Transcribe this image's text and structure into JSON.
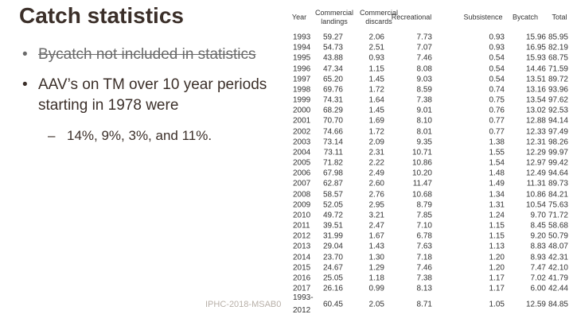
{
  "title": "Catch statistics",
  "bullets": [
    "Bycatch not included in statistics",
    "AAV’s on TM over 10 year periods starting in 1978 were"
  ],
  "sub_bullet": "14%, 9%, 3%, and 11%.",
  "footer": "IPHC-2018-MSAB0",
  "table": {
    "header": [
      "Year",
      "Commercial landings",
      "Commercial discards",
      "Recreational",
      "Subsistence",
      "Bycatch",
      "Total"
    ],
    "rows": [
      [
        "1993",
        "59.27",
        "2.06",
        "7.73",
        "0.93",
        "15.96",
        "85.95"
      ],
      [
        "1994",
        "54.73",
        "2.51",
        "7.07",
        "0.93",
        "16.95",
        "82.19"
      ],
      [
        "1995",
        "43.88",
        "0.93",
        "7.46",
        "0.54",
        "15.93",
        "68.75"
      ],
      [
        "1996",
        "47.34",
        "1.15",
        "8.08",
        "0.54",
        "14.46",
        "71.59"
      ],
      [
        "1997",
        "65.20",
        "1.45",
        "9.03",
        "0.54",
        "13.51",
        "89.72"
      ],
      [
        "1998",
        "69.76",
        "1.72",
        "8.59",
        "0.74",
        "13.16",
        "93.96"
      ],
      [
        "1999",
        "74.31",
        "1.64",
        "7.38",
        "0.75",
        "13.54",
        "97.62"
      ],
      [
        "2000",
        "68.29",
        "1.45",
        "9.01",
        "0.76",
        "13.02",
        "92.53"
      ],
      [
        "2001",
        "70.70",
        "1.69",
        "8.10",
        "0.77",
        "12.88",
        "94.14"
      ],
      [
        "2002",
        "74.66",
        "1.72",
        "8.01",
        "0.77",
        "12.33",
        "97.49"
      ],
      [
        "2003",
        "73.14",
        "2.09",
        "9.35",
        "1.38",
        "12.31",
        "98.26"
      ],
      [
        "2004",
        "73.11",
        "2.31",
        "10.71",
        "1.55",
        "12.29",
        "99.97"
      ],
      [
        "2005",
        "71.82",
        "2.22",
        "10.86",
        "1.54",
        "12.97",
        "99.42"
      ],
      [
        "2006",
        "67.98",
        "2.49",
        "10.20",
        "1.48",
        "12.49",
        "94.64"
      ],
      [
        "2007",
        "62.87",
        "2.60",
        "11.47",
        "1.49",
        "11.31",
        "89.73"
      ],
      [
        "2008",
        "58.57",
        "2.76",
        "10.68",
        "1.34",
        "10.86",
        "84.21"
      ],
      [
        "2009",
        "52.05",
        "2.95",
        "8.79",
        "1.31",
        "10.54",
        "75.63"
      ],
      [
        "2010",
        "49.72",
        "3.21",
        "7.85",
        "1.24",
        "9.70",
        "71.72"
      ],
      [
        "2011",
        "39.51",
        "2.47",
        "7.10",
        "1.15",
        "8.45",
        "58.68"
      ],
      [
        "2012",
        "31.99",
        "1.67",
        "6.78",
        "1.15",
        "9.20",
        "50.79"
      ],
      [
        "2013",
        "29.04",
        "1.43",
        "7.63",
        "1.13",
        "8.83",
        "48.07"
      ],
      [
        "2014",
        "23.70",
        "1.30",
        "7.18",
        "1.20",
        "8.93",
        "42.31"
      ],
      [
        "2015",
        "24.67",
        "1.29",
        "7.46",
        "1.20",
        "7.47",
        "42.10"
      ],
      [
        "2016",
        "25.05",
        "1.18",
        "7.38",
        "1.17",
        "7.02",
        "41.79"
      ],
      [
        "2017",
        "26.16",
        "0.99",
        "8.13",
        "1.17",
        "6.00",
        "42.44"
      ],
      [
        "1993-2012",
        "60.45",
        "2.05",
        "8.71",
        "1.05",
        "12.59",
        "84.85"
      ]
    ]
  }
}
